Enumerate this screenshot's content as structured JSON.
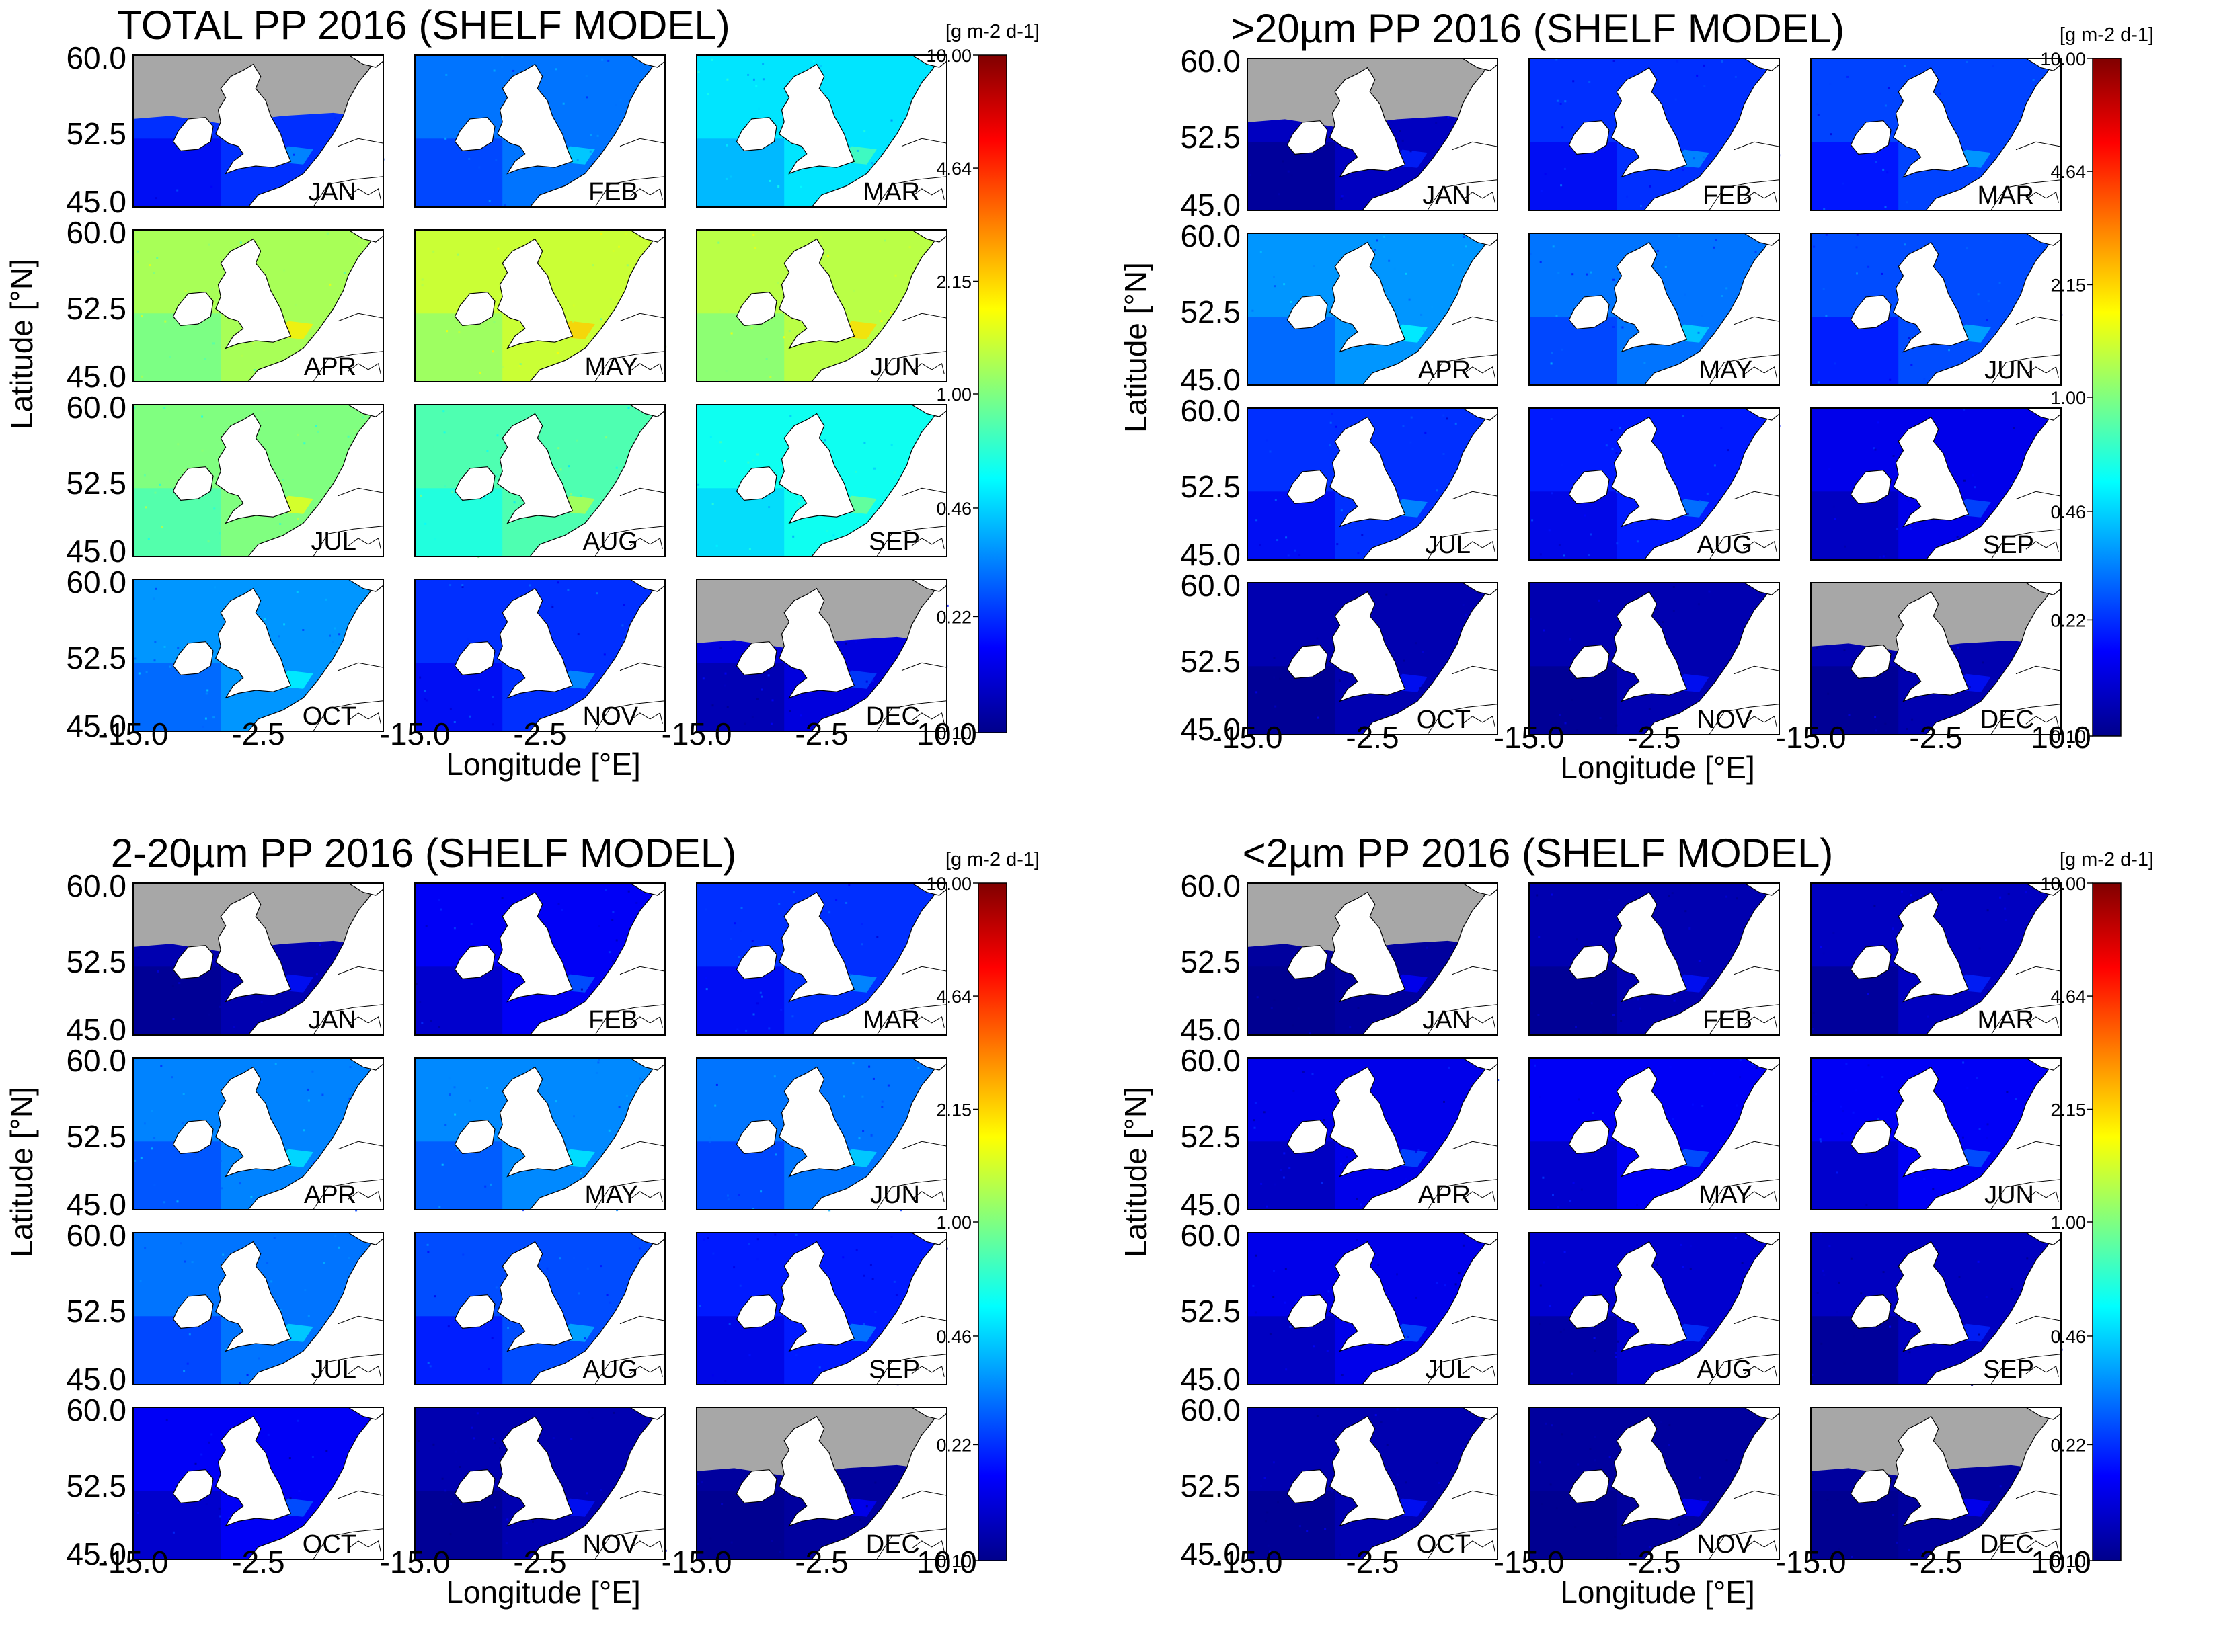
{
  "chart_data": {
    "type": "heatmap",
    "description_units": "Primary production, g m-2 d-1, log colour scale",
    "months": [
      "JAN",
      "FEB",
      "MAR",
      "APR",
      "MAY",
      "JUN",
      "JUL",
      "AUG",
      "SEP",
      "OCT",
      "NOV",
      "DEC"
    ],
    "lat_ticks": [
      "60.0",
      "52.5",
      "45.0"
    ],
    "lon_ticks_per_row": [
      "-15.0",
      "-2.5"
    ],
    "lon_end_tick": "10.0",
    "lat_range": [
      45.0,
      60.0
    ],
    "lon_range": [
      -15.0,
      10.0
    ],
    "xlabel_text": "Longitude",
    "xlabel_unit": "[°E]",
    "ylabel_text": "Latitude",
    "ylabel_unit": "[°N]",
    "colorbar": {
      "unit_label": "[g m-2 d-1]",
      "ticks": [
        "10.00",
        "4.64",
        "2.15",
        "1.00",
        "0.46",
        "0.22",
        "0.10"
      ],
      "tick_values": [
        10.0,
        4.64,
        2.15,
        1.0,
        0.46,
        0.22,
        0.1
      ],
      "range": [
        0.1,
        10.0
      ],
      "scale": "log",
      "colormap": [
        "#00008b",
        "#0000ff",
        "#0080ff",
        "#00ffff",
        "#80ff80",
        "#ffff00",
        "#ff8000",
        "#ff0000",
        "#800000"
      ]
    },
    "panels": [
      {
        "title": "TOTAL PP 2016 (SHELF MODEL)",
        "monthly_typical_pp": [
          0.22,
          0.3,
          0.5,
          1.2,
          1.4,
          1.3,
          1.0,
          0.8,
          0.6,
          0.35,
          0.22,
          0.15
        ],
        "no_data_north": [
          true,
          false,
          false,
          false,
          false,
          false,
          false,
          false,
          false,
          false,
          false,
          true
        ]
      },
      {
        "title": ">20µm PP 2016 (SHELF MODEL)",
        "monthly_typical_pp": [
          0.13,
          0.22,
          0.24,
          0.35,
          0.3,
          0.25,
          0.22,
          0.2,
          0.16,
          0.12,
          0.12,
          0.12
        ],
        "no_data_north": [
          true,
          false,
          false,
          false,
          false,
          false,
          false,
          false,
          false,
          false,
          false,
          true
        ]
      },
      {
        "title": "2-20µm PP 2016 (SHELF MODEL)",
        "monthly_typical_pp": [
          0.12,
          0.17,
          0.22,
          0.32,
          0.33,
          0.3,
          0.3,
          0.25,
          0.2,
          0.17,
          0.12,
          0.11
        ],
        "no_data_north": [
          true,
          false,
          false,
          false,
          false,
          false,
          false,
          false,
          false,
          false,
          false,
          true
        ]
      },
      {
        "title": "<2µm PP 2016 (SHELF MODEL)",
        "monthly_typical_pp": [
          0.11,
          0.12,
          0.13,
          0.16,
          0.17,
          0.17,
          0.16,
          0.14,
          0.13,
          0.12,
          0.11,
          0.11
        ],
        "no_data_north": [
          true,
          false,
          false,
          false,
          false,
          false,
          false,
          false,
          false,
          false,
          false,
          true
        ]
      }
    ]
  },
  "colors": {
    "land": "#ffffff",
    "no_data": "#a7a7a7",
    "frame": "#000000"
  }
}
